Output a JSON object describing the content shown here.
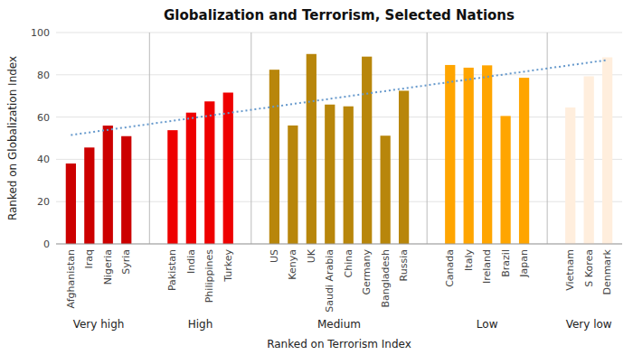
{
  "chart_data": {
    "type": "bar",
    "title": "Globalization and Terrorism, Selected Nations",
    "xlabel": "Ranked on Terrorism Index",
    "ylabel": "Ranked on Globalization Index",
    "ylim": [
      0,
      100
    ],
    "yticks": [
      0,
      20,
      40,
      60,
      80,
      100
    ],
    "grid": true,
    "groups": [
      {
        "label": "Very high",
        "color": "#cc0000",
        "categories": [
          "Afghanistan",
          "Iraq",
          "Nigeria",
          "Syria"
        ],
        "values": [
          38.03,
          45.6,
          55.97,
          50.97
        ]
      },
      {
        "label": "High",
        "color": "#ee0000",
        "categories": [
          "Pakistan",
          "India",
          "Philippines",
          "Turkey"
        ],
        "values": [
          53.79,
          62.1,
          67.41,
          71.58
        ]
      },
      {
        "label": "Medium",
        "color": "#b8860b",
        "categories": [
          "US",
          "Kenya",
          "UK",
          "Saudi Arabia",
          "China",
          "Germany",
          "Bangladesh",
          "Russia"
        ],
        "values": [
          82.41,
          56.03,
          89.84,
          65.92,
          65.08,
          88.6,
          51.19,
          72.45
        ]
      },
      {
        "label": "Low",
        "color": "#ffa500",
        "categories": [
          "Canada",
          "Italy",
          "Ireland",
          "Brazil",
          "Japan"
        ],
        "values": [
          84.64,
          83.37,
          84.47,
          60.52,
          78.59
        ]
      },
      {
        "label": "Very low",
        "color": "#ffeedd",
        "categories": [
          "Vietnam",
          "S Korea",
          "Denmark"
        ],
        "values": [
          64.55,
          79.29,
          88.26
        ]
      }
    ],
    "trendline": {
      "values": [
        51.5,
        87.0
      ],
      "color": "#6699cc",
      "line_style": "dotted"
    }
  }
}
